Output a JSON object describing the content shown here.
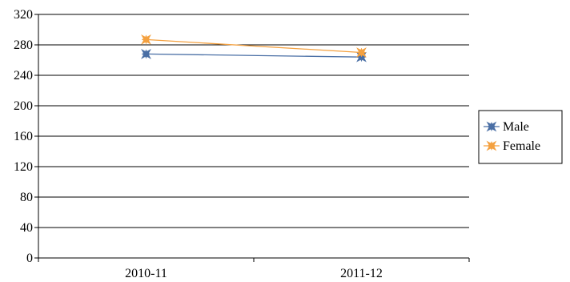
{
  "chart_data": {
    "type": "line",
    "categories": [
      "2010-11",
      "2011-12"
    ],
    "series": [
      {
        "name": "Male",
        "values": [
          268,
          264
        ],
        "color": "#4A6FA5",
        "marker": "star"
      },
      {
        "name": "Female",
        "values": [
          287,
          270
        ],
        "color": "#F4A140",
        "marker": "star"
      }
    ],
    "ylim": [
      0,
      320
    ],
    "yticks": [
      "0",
      "40",
      "80",
      "120",
      "160",
      "200",
      "240",
      "280",
      "320"
    ],
    "grid": true,
    "legend_position": "right"
  }
}
